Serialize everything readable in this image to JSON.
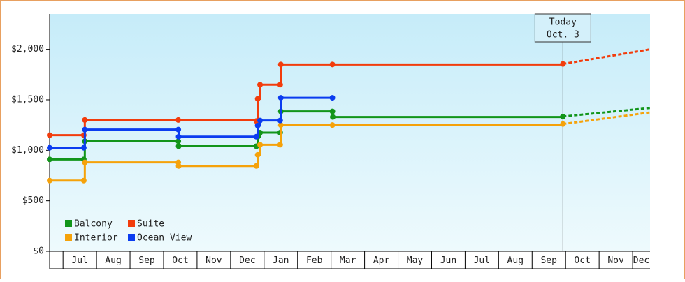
{
  "chart_data": {
    "type": "step",
    "xlim": [
      -0.4,
      17.52
    ],
    "xticks": [
      {
        "value": 0,
        "label": "Jul"
      },
      {
        "value": 1,
        "label": "Aug"
      },
      {
        "value": 2,
        "label": "Sep"
      },
      {
        "value": 3,
        "label": "Oct"
      },
      {
        "value": 4,
        "label": "Nov"
      },
      {
        "value": 5,
        "label": "Dec"
      },
      {
        "value": 6,
        "label": "Jan"
      },
      {
        "value": 7,
        "label": "Feb"
      },
      {
        "value": 8,
        "label": "Mar"
      },
      {
        "value": 9,
        "label": "Apr"
      },
      {
        "value": 10,
        "label": "May"
      },
      {
        "value": 11,
        "label": "Jun"
      },
      {
        "value": 12,
        "label": "Jul"
      },
      {
        "value": 13,
        "label": "Aug"
      },
      {
        "value": 14,
        "label": "Sep"
      },
      {
        "value": 15,
        "label": "Oct"
      },
      {
        "value": 16,
        "label": "Nov"
      },
      {
        "value": 17,
        "label": "Dec"
      }
    ],
    "ylim": [
      0,
      2350
    ],
    "yticks": [
      {
        "value": 0,
        "label": "$0"
      },
      {
        "value": 500,
        "label": "$500"
      },
      {
        "value": 1000,
        "label": "$1,000"
      },
      {
        "value": 1500,
        "label": "$1,500"
      },
      {
        "value": 2000,
        "label": "$2,000"
      }
    ],
    "annotation": {
      "x": 14.92,
      "text": [
        "Today",
        "Oct. 3"
      ]
    },
    "series": [
      {
        "name": "Balcony",
        "color": "#12951a",
        "x": [
          -0.4,
          0.62,
          0.65,
          3.44,
          3.45,
          5.77,
          5.81,
          5.88,
          6.48,
          6.5,
          8.04,
          8.05,
          14.92
        ],
        "values": [
          910,
          910,
          1090,
          1090,
          1040,
          1040,
          1135,
          1175,
          1175,
          1385,
          1385,
          1330,
          1335
        ],
        "projection": {
          "x": [
            14.92,
            17.52
          ],
          "values": [
            1335,
            1419
          ]
        }
      },
      {
        "name": "Suite",
        "color": "#f23c0c",
        "x": [
          -0.4,
          0.62,
          0.65,
          3.44,
          5.77,
          5.81,
          5.88,
          6.48,
          6.5,
          8.04,
          14.92
        ],
        "values": [
          1150,
          1150,
          1300,
          1300,
          1290,
          1510,
          1650,
          1650,
          1850,
          1850,
          1855
        ],
        "projection": {
          "x": [
            14.92,
            17.52
          ],
          "values": [
            1855,
            2000
          ]
        }
      },
      {
        "name": "Interior",
        "color": "#f5a20a",
        "x": [
          -0.4,
          0.62,
          0.65,
          3.44,
          3.45,
          5.77,
          5.81,
          5.88,
          6.48,
          6.5,
          8.04,
          14.92
        ],
        "values": [
          700,
          700,
          880,
          880,
          845,
          845,
          955,
          1055,
          1055,
          1250,
          1250,
          1260
        ],
        "projection": {
          "x": [
            14.92,
            17.52
          ],
          "values": [
            1260,
            1375
          ]
        }
      },
      {
        "name": "Ocean View",
        "color": "#0a3cf0",
        "x": [
          -0.4,
          0.62,
          0.65,
          3.44,
          3.45,
          5.77,
          5.81,
          5.88,
          6.48,
          6.5,
          8.04
        ],
        "values": [
          1025,
          1025,
          1205,
          1205,
          1135,
          1135,
          1245,
          1295,
          1295,
          1520,
          1520
        ]
      }
    ]
  }
}
